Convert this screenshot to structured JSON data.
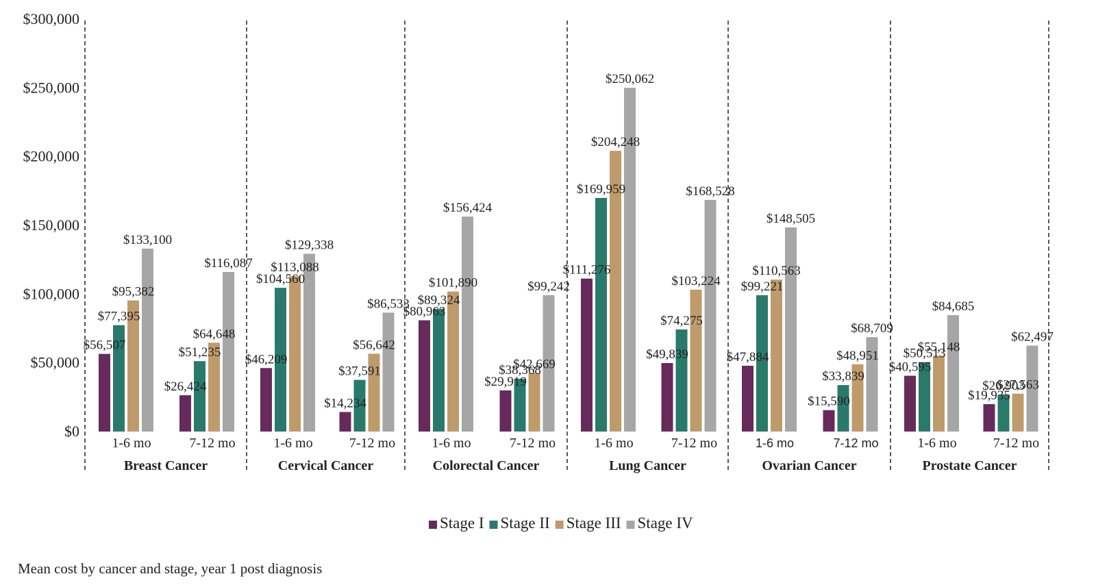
{
  "chart_data": {
    "type": "bar",
    "caption": "Mean cost by cancer and stage, year 1 post diagnosis",
    "ylim": [
      0,
      300000
    ],
    "y_ticks": [
      {
        "value": 0,
        "label": "$0"
      },
      {
        "value": 50000,
        "label": "$50,000"
      },
      {
        "value": 100000,
        "label": "$100,000"
      },
      {
        "value": 150000,
        "label": "$150,000"
      },
      {
        "value": 200000,
        "label": "$200,000"
      },
      {
        "value": 250000,
        "label": "$250,000"
      },
      {
        "value": 300000,
        "label": "$300,000"
      }
    ],
    "series": [
      {
        "name": "Stage I",
        "color": "#672a5c"
      },
      {
        "name": "Stage II",
        "color": "#2a7a6c"
      },
      {
        "name": "Stage III",
        "color": "#bf9b6c"
      },
      {
        "name": "Stage IV",
        "color": "#a6a6a6"
      }
    ],
    "groups": [
      {
        "name": "Breast Cancer",
        "periods": [
          {
            "label": "1-6 mo",
            "values": [
              56507,
              77395,
              95382,
              133100
            ],
            "labels": [
              "$56,507",
              "$77,395",
              "$95,382",
              "$133,100"
            ]
          },
          {
            "label": "7-12 mo",
            "values": [
              26424,
              51235,
              64648,
              116087
            ],
            "labels": [
              "$26,424",
              "$51,235",
              "$64,648",
              "$116,087"
            ]
          }
        ]
      },
      {
        "name": "Cervical Cancer",
        "periods": [
          {
            "label": "1-6 mo",
            "values": [
              46209,
              104560,
              113088,
              129338
            ],
            "labels": [
              "$46,209",
              "$104,560",
              "$113,088",
              "$129,338"
            ]
          },
          {
            "label": "7-12 mo",
            "values": [
              14234,
              37591,
              56642,
              86533
            ],
            "labels": [
              "$14,234",
              "$37,591",
              "$56,642",
              "$86,533"
            ]
          }
        ]
      },
      {
        "name": "Colorectal Cancer",
        "periods": [
          {
            "label": "1-6 mo",
            "values": [
              80963,
              89324,
              101890,
              156424
            ],
            "labels": [
              "$80,963",
              "$89,324",
              "$101,890",
              "$156,424"
            ]
          },
          {
            "label": "7-12 mo",
            "values": [
              29919,
              38368,
              42669,
              99242
            ],
            "labels": [
              "$29,919",
              "$38,368",
              "$42,669",
              "$99,242"
            ]
          }
        ]
      },
      {
        "name": "Lung Cancer",
        "periods": [
          {
            "label": "1-6 mo",
            "values": [
              111276,
              169959,
              204248,
              250062
            ],
            "labels": [
              "$111,276",
              "$169,959",
              "$204,248",
              "$250,062"
            ]
          },
          {
            "label": "7-12 mo",
            "values": [
              49839,
              74275,
              103224,
              168528
            ],
            "labels": [
              "$49,839",
              "$74,275",
              "$103,224",
              "$168,528"
            ]
          }
        ]
      },
      {
        "name": "Ovarian Cancer",
        "periods": [
          {
            "label": "1-6 mo",
            "values": [
              47884,
              99221,
              110563,
              148505
            ],
            "labels": [
              "$47,884",
              "$99,221",
              "$110,563",
              "$148,505"
            ]
          },
          {
            "label": "7-12 mo",
            "values": [
              15590,
              33839,
              48951,
              68709
            ],
            "labels": [
              "$15,590",
              "$33,839",
              "$48,951",
              "$68,709"
            ]
          }
        ]
      },
      {
        "name": "Prostate Cancer",
        "periods": [
          {
            "label": "1-6 mo",
            "values": [
              40595,
              50513,
              55148,
              84685
            ],
            "labels": [
              "$40,595",
              "$50,513",
              "$55,148",
              "$84,685"
            ]
          },
          {
            "label": "7-12 mo",
            "values": [
              19935,
              26903,
              27563,
              62497
            ],
            "labels": [
              "$19,935",
              "$26,903",
              "$27,563",
              "$62,497"
            ]
          }
        ]
      }
    ]
  }
}
